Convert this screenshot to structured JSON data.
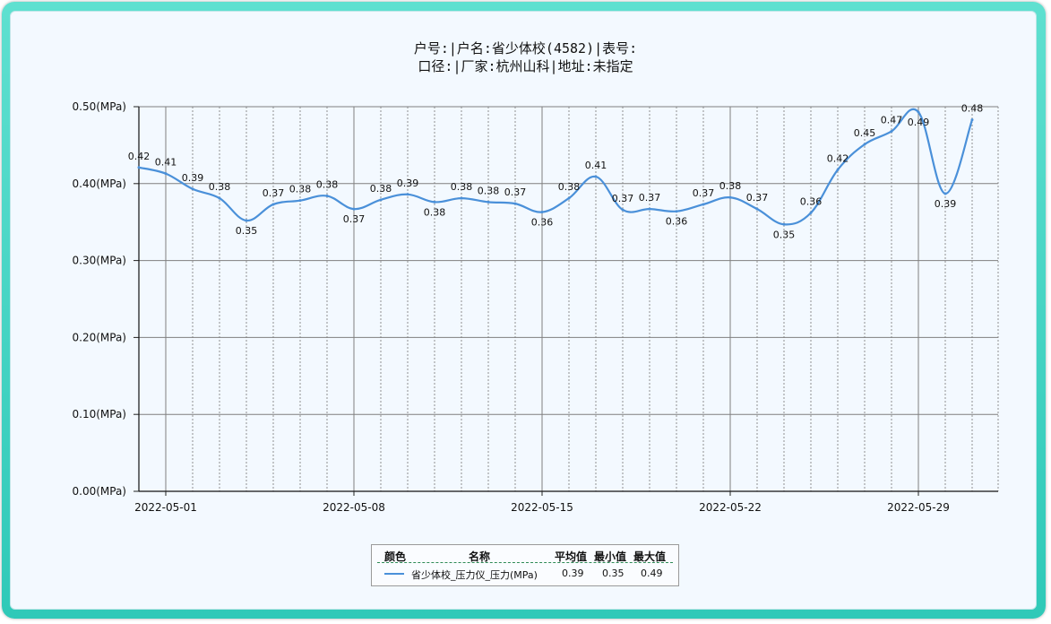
{
  "title_line1": "户号:|户名:省少体校(4582)|表号:",
  "title_line2": "口径:|厂家:杭州山科|地址:未指定",
  "colors": {
    "line": "#4a90d9",
    "grid": "#7f7f7f",
    "grid_minor": "#777777"
  },
  "chart_data": {
    "type": "line",
    "y_unit": "(MPa)",
    "ylim": [
      0,
      0.5
    ],
    "y_ticks": [
      0.0,
      0.1,
      0.2,
      0.3,
      0.4,
      0.5
    ],
    "y_tick_labels": [
      "0.00(MPa)",
      "0.10(MPa)",
      "0.20(MPa)",
      "0.30(MPa)",
      "0.40(MPa)",
      "0.50(MPa)"
    ],
    "x_start": "2022-04-30",
    "x_major_labels": [
      "2022-05-01",
      "2022-05-08",
      "2022-05-15",
      "2022-05-22",
      "2022-05-29"
    ],
    "dates": [
      "2022-04-30",
      "2022-05-01",
      "2022-05-02",
      "2022-05-03",
      "2022-05-04",
      "2022-05-05",
      "2022-05-06",
      "2022-05-07",
      "2022-05-08",
      "2022-05-09",
      "2022-05-10",
      "2022-05-11",
      "2022-05-12",
      "2022-05-13",
      "2022-05-14",
      "2022-05-15",
      "2022-05-16",
      "2022-05-17",
      "2022-05-18",
      "2022-05-19",
      "2022-05-20",
      "2022-05-21",
      "2022-05-22",
      "2022-05-23",
      "2022-05-24",
      "2022-05-25",
      "2022-05-26",
      "2022-05-27",
      "2022-05-28",
      "2022-05-29",
      "2022-05-30",
      "2022-05-31"
    ],
    "values": [
      0.421,
      0.413,
      0.393,
      0.381,
      0.352,
      0.373,
      0.378,
      0.384,
      0.367,
      0.379,
      0.386,
      0.376,
      0.381,
      0.376,
      0.374,
      0.363,
      0.381,
      0.409,
      0.366,
      0.367,
      0.364,
      0.373,
      0.382,
      0.367,
      0.347,
      0.362,
      0.418,
      0.451,
      0.468,
      0.493,
      0.387,
      0.483
    ],
    "labels": [
      "0.42",
      "0.41",
      "0.39",
      "0.38",
      "0.35",
      "0.37",
      "0.38",
      "0.38",
      "0.37",
      "0.38",
      "0.39",
      "0.38",
      "0.38",
      "0.38",
      "0.37",
      "0.36",
      "0.38",
      "0.41",
      "0.37",
      "0.37",
      "0.36",
      "0.37",
      "0.38",
      "0.37",
      "0.35",
      "0.36",
      "0.42",
      "0.45",
      "0.47",
      "0.49",
      "0.39",
      "0.48"
    ],
    "label_pos": [
      "above",
      "above",
      "above",
      "above",
      "below",
      "above",
      "above",
      "above",
      "below",
      "above",
      "above",
      "below",
      "above",
      "above",
      "above",
      "below",
      "above",
      "above",
      "above",
      "above",
      "below",
      "above",
      "above",
      "above",
      "below",
      "above",
      "above",
      "above",
      "above",
      "below",
      "below",
      "above"
    ],
    "series_name": "省少体校_压力仪_压力(MPa)",
    "grid": true
  },
  "legend": {
    "headers": [
      "颜色",
      "名称",
      "平均值",
      "最小值",
      "最大值"
    ],
    "row": {
      "name": "省少体校_压力仪_压力(MPa)",
      "avg": "0.39",
      "min": "0.35",
      "max": "0.49"
    }
  }
}
